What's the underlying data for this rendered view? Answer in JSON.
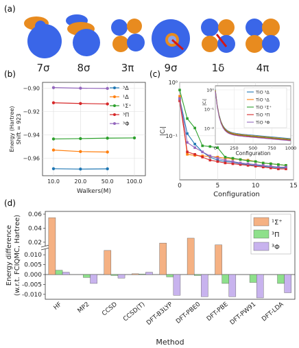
{
  "panels": {
    "a": {
      "label": "(a)",
      "orbitals": [
        {
          "name": "7σ",
          "colors": [
            "#3a66e8",
            "#e88b1f"
          ]
        },
        {
          "name": "8σ",
          "colors": [
            "#3a66e8",
            "#e88b1f"
          ]
        },
        {
          "name": "3π",
          "colors": [
            "#3a66e8",
            "#e88b1f"
          ]
        },
        {
          "name": "9σ",
          "colors": [
            "#3a66e8",
            "#e88b1f"
          ]
        },
        {
          "name": "1δ",
          "colors": [
            "#3a66e8",
            "#e88b1f"
          ]
        },
        {
          "name": "4π",
          "colors": [
            "#3a66e8",
            "#e88b1f"
          ]
        }
      ]
    },
    "b": {
      "label": "(b)"
    },
    "c": {
      "label": "(c)"
    },
    "d": {
      "label": "(d)"
    }
  },
  "chart_data": [
    {
      "panel": "b",
      "type": "line",
      "ylabel": "Energy (Hartree)",
      "ylabel2": "Shift = 923",
      "xlabel": "Walkers(M)",
      "categories": [
        "10.0",
        "20.0",
        "50.0",
        "100.0"
      ],
      "ylim": [
        -0.975,
        -0.895
      ],
      "yticks": [
        -0.9,
        -0.92,
        -0.94,
        -0.96
      ],
      "ytick_labels": [
        "−0.90",
        "−0.92",
        "−0.94",
        "−0.96"
      ],
      "grid": true,
      "legend": "right",
      "series": [
        {
          "name": "³Δ",
          "color": "#1f77b4",
          "values": [
            -0.969,
            -0.9693,
            -0.9691,
            null
          ]
        },
        {
          "name": "¹Δ",
          "color": "#ff7f0e",
          "values": [
            -0.953,
            -0.9543,
            -0.9547,
            null
          ]
        },
        {
          "name": "¹Σ⁺",
          "color": "#2ca02c",
          "values": [
            -0.9435,
            -0.9432,
            -0.9428,
            -0.9426
          ]
        },
        {
          "name": "³Π",
          "color": "#d62728",
          "values": [
            -0.9125,
            -0.9131,
            -0.9135,
            null
          ]
        },
        {
          "name": "³Φ",
          "color": "#9467bd",
          "values": [
            -0.8995,
            -0.9,
            -0.9002,
            null
          ]
        }
      ]
    },
    {
      "panel": "c",
      "type": "line",
      "xlabel": "Configuration",
      "ylabel": "|Cᵢ|",
      "xlim": [
        0,
        15
      ],
      "ylim_log": [
        0.015,
        1
      ],
      "xticks": [
        0,
        5,
        10,
        15
      ],
      "yticks": [
        "10⁰",
        "10⁻¹"
      ],
      "grid": true,
      "series": [
        {
          "name": "³Δ",
          "color": "#1f77b4",
          "values": [
            0.5,
            0.11,
            0.07,
            0.05,
            0.04,
            0.035,
            0.033,
            0.032,
            0.03,
            0.029,
            0.028,
            0.027,
            0.026,
            0.025,
            0.025
          ]
        },
        {
          "name": "¹Δ",
          "color": "#ff7f0e",
          "values": [
            0.55,
            0.045,
            0.043,
            0.042,
            0.041,
            0.04,
            0.038,
            0.037,
            0.036,
            0.035,
            0.033,
            0.031,
            0.03,
            0.029,
            0.028
          ]
        },
        {
          "name": "¹Σ⁺",
          "color": "#2ca02c",
          "values": [
            0.72,
            0.21,
            0.14,
            0.065,
            0.063,
            0.06,
            0.04,
            0.038,
            0.036,
            0.034,
            0.033,
            0.031,
            0.03,
            0.029,
            0.028
          ]
        },
        {
          "name": "³Π",
          "color": "#d62728",
          "values": [
            0.45,
            0.05,
            0.045,
            0.04,
            0.035,
            0.033,
            0.031,
            0.03,
            0.029,
            0.028,
            0.027,
            0.026,
            0.025,
            0.024,
            0.024
          ]
        },
        {
          "name": "³Φ",
          "color": "#9467bd",
          "values": [
            0.5,
            0.075,
            0.06,
            0.05,
            0.042,
            0.038,
            0.035,
            0.033,
            0.031,
            0.03,
            0.029,
            0.028,
            0.027,
            0.026,
            0.026
          ]
        }
      ],
      "inset": {
        "xlabel": "Configuration",
        "ylabel": "|Cᵢ|",
        "xlim": [
          0,
          1000
        ],
        "xticks": [
          "0",
          "250",
          "500",
          "750",
          "1000"
        ],
        "yticks": [
          "10⁰",
          "10⁻¹",
          "10⁻²"
        ],
        "legend": [
          {
            "name": "TiO ³Δ",
            "color": "#1f77b4"
          },
          {
            "name": "TiO ¹Δ",
            "color": "#ff7f0e"
          },
          {
            "name": "TiO ¹Σ⁺",
            "color": "#2ca02c"
          },
          {
            "name": "TiO ³Π",
            "color": "#d62728"
          },
          {
            "name": "TiO ³Φ",
            "color": "#9467bd"
          }
        ]
      }
    },
    {
      "panel": "d",
      "type": "bar",
      "ylabel": "Energy difference",
      "ylabel2": "(w.r.t. FCIQMC, Hartree)",
      "xlabel": "Method",
      "categories": [
        "HF",
        "MP2",
        "CCSD",
        "CCSD(T)",
        "DFT-B3LYP",
        "DFT-PBE0",
        "DFT-PBE",
        "DFT-PW91",
        "DFT-LDA"
      ],
      "yticks": [
        "0.06",
        "0.04",
        "0.02",
        "0.010",
        "0.005",
        "0.000",
        "-0.005",
        "-0.010"
      ],
      "broken_axis": true,
      "legend": "top-right",
      "series": [
        {
          "name": "¹Σ⁺",
          "color": "#f5b183",
          "values": [
            0.055,
            0.0,
            0.0122,
            0.0004,
            0.0188,
            0.0258,
            0.0162,
            0.0,
            0.0
          ]
        },
        {
          "name": "³Π",
          "color": "#8ee08b",
          "values": [
            0.0022,
            -0.0015,
            -0.0005,
            0.0003,
            -0.0012,
            -0.0005,
            -0.0045,
            -0.004,
            -0.0045
          ]
        },
        {
          "name": "³Φ",
          "color": "#c8b3ee",
          "values": [
            0.0012,
            -0.0045,
            -0.0018,
            0.0012,
            -0.0105,
            -0.0112,
            -0.0112,
            -0.0118,
            -0.0092
          ]
        }
      ]
    }
  ]
}
